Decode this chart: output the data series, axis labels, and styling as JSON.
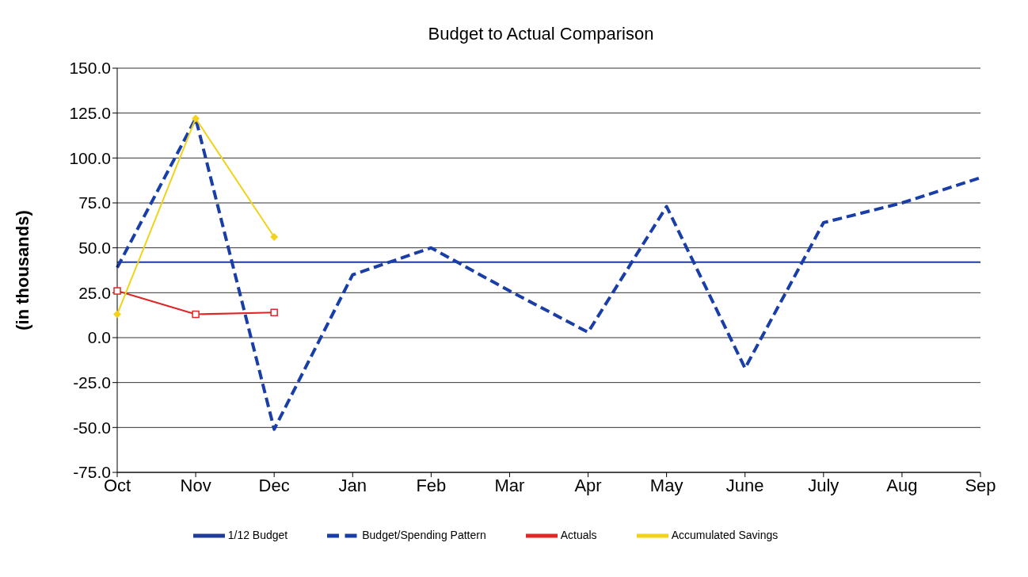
{
  "chart_data": {
    "type": "line",
    "title": "Budget to Actual Comparison",
    "ylabel": "(in thousands)",
    "categories": [
      "Oct",
      "Nov",
      "Dec",
      "Jan",
      "Feb",
      "Mar",
      "Apr",
      "May",
      "June",
      "July",
      "Aug",
      "Sep"
    ],
    "series": [
      {
        "name": "1/12 Budget",
        "color": "#1f3c9a",
        "values": [
          42,
          42,
          42,
          42,
          42,
          42,
          42,
          42,
          42,
          42,
          42,
          42
        ],
        "marker": "none",
        "line_style": "solid"
      },
      {
        "name": "Budget/Spending Pattern",
        "color": "#1a3ea8",
        "values": [
          39,
          122,
          -51,
          35,
          50,
          26,
          3,
          73,
          -17,
          64,
          75,
          89
        ],
        "marker": "none",
        "line_style": "dashed"
      },
      {
        "name": "Actuals",
        "color": "#e02626",
        "values": [
          26,
          13,
          14,
          null,
          null,
          null,
          null,
          null,
          null,
          null,
          null,
          null
        ],
        "marker": "square",
        "line_style": "solid"
      },
      {
        "name": "Accumulated Savings",
        "color": "#f2d21a",
        "values": [
          13,
          122,
          56,
          null,
          null,
          null,
          null,
          null,
          null,
          null,
          null,
          null
        ],
        "marker": "diamond",
        "line_style": "solid"
      }
    ],
    "ylim": [
      -75,
      150
    ],
    "yticks": [
      {
        "value": -75,
        "label": "-75.0"
      },
      {
        "value": -50,
        "label": "-50.0"
      },
      {
        "value": -25,
        "label": "-25.0"
      },
      {
        "value": 0,
        "label": "0.0"
      },
      {
        "value": 25,
        "label": "25.0"
      },
      {
        "value": 50,
        "label": "50.0"
      },
      {
        "value": 75,
        "label": "75.0"
      },
      {
        "value": 100,
        "label": "100.0"
      },
      {
        "value": 125,
        "label": "125.0"
      },
      {
        "value": 150,
        "label": "150.0"
      }
    ],
    "grid": "y",
    "legend": "bottom"
  }
}
